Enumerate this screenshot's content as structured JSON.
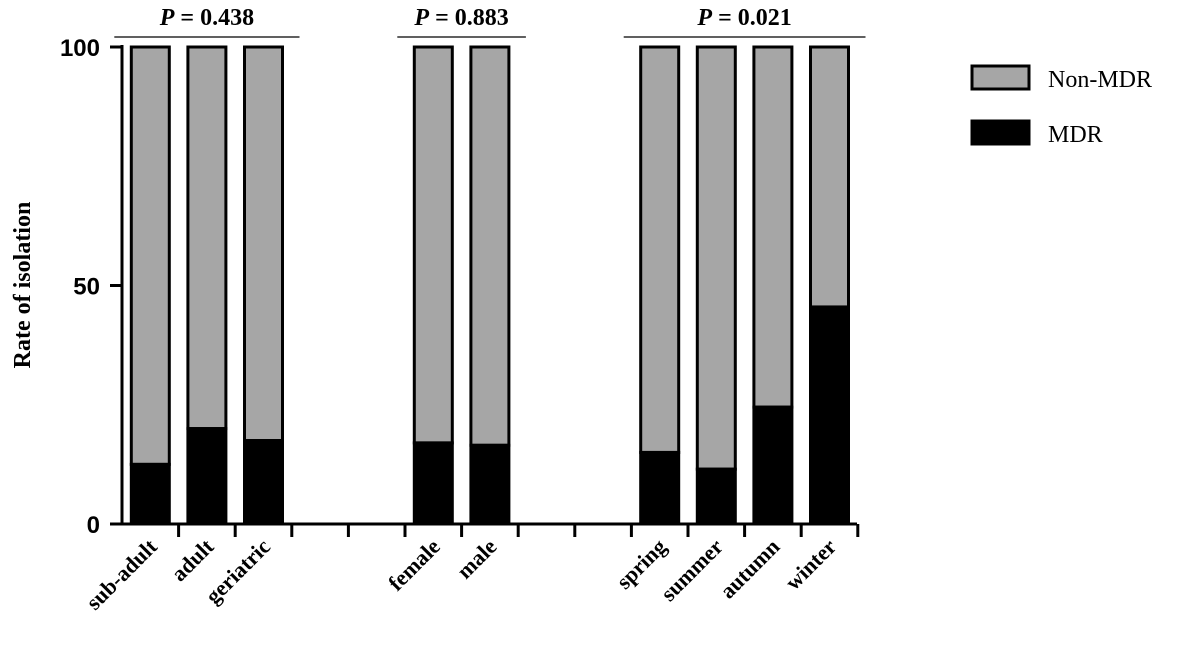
{
  "chart_data": {
    "type": "bar",
    "stacked": true,
    "ylabel": "Rate of isolation",
    "xlabel": "",
    "ylim": [
      0,
      100
    ],
    "yticks": [
      0,
      50,
      100
    ],
    "categories": [
      "sub-adult",
      "adult",
      "geriatric",
      "female",
      "male",
      "spring",
      "summer",
      "autumn",
      "winter"
    ],
    "series": [
      {
        "name": "MDR",
        "values": [
          12.5,
          20,
          17.5,
          17,
          16.5,
          15,
          11.5,
          24.5,
          45.5
        ],
        "color": "#000000"
      },
      {
        "name": "Non-MDR",
        "values": [
          87.5,
          80,
          82.5,
          83,
          83.5,
          85,
          88.5,
          75.5,
          54.5
        ],
        "color": "#a6a6a6"
      }
    ],
    "groups": [
      {
        "p_label": "P",
        "p_value": " = 0.438",
        "categories": [
          "sub-adult",
          "adult",
          "geriatric"
        ]
      },
      {
        "p_label": "P",
        "p_value": " = 0.883",
        "categories": [
          "female",
          "male"
        ]
      },
      {
        "p_label": "P",
        "p_value": " = 0.021",
        "categories": [
          "spring",
          "summer",
          "autumn",
          "winter"
        ]
      }
    ],
    "legend": {
      "placement": "top-right",
      "entries": [
        "Non-MDR",
        "MDR"
      ]
    },
    "grid": false
  }
}
